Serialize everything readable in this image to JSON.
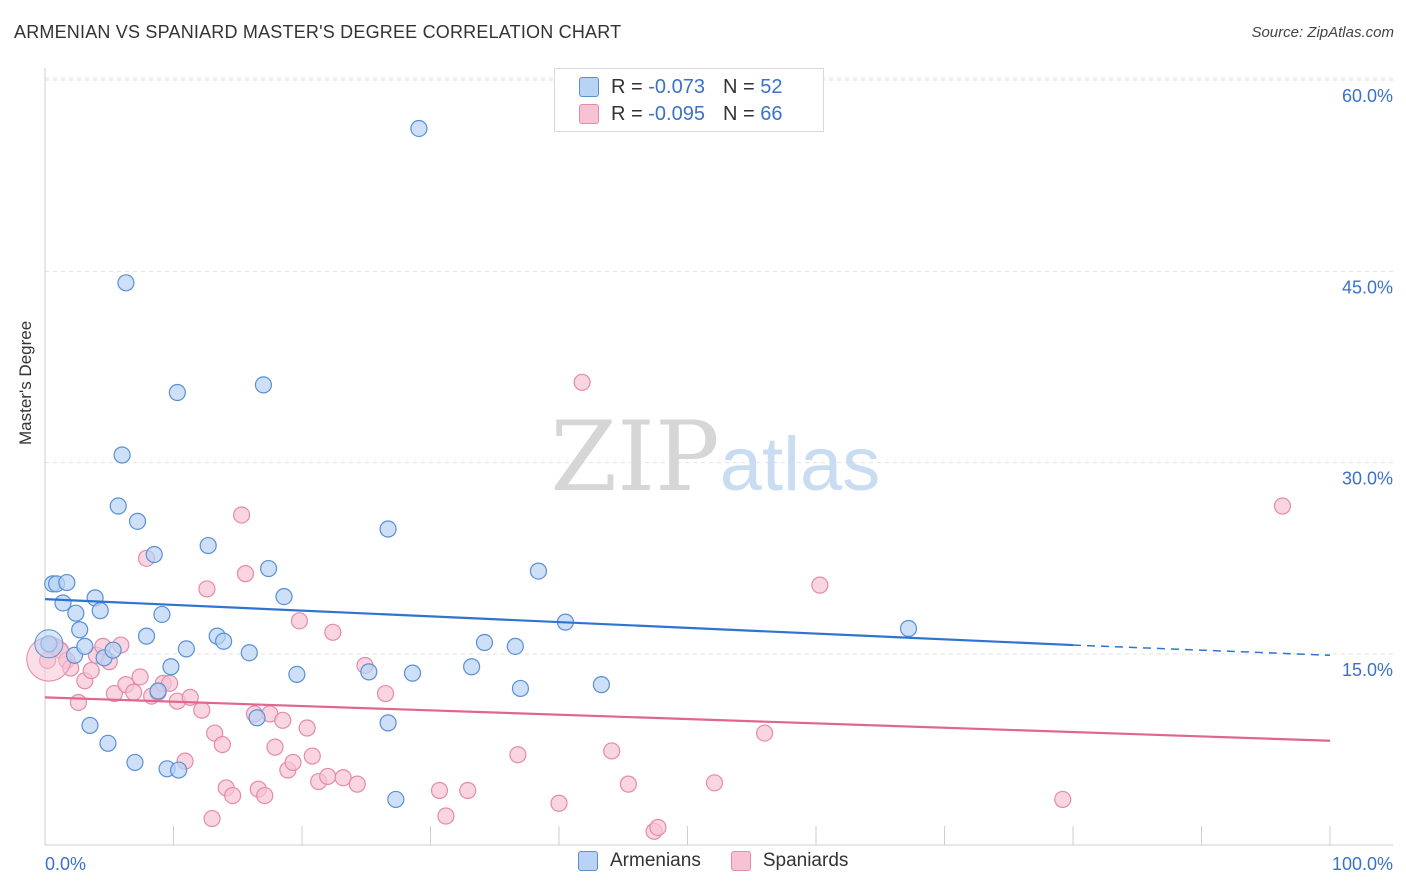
{
  "header": {
    "title": "ARMENIAN VS SPANIARD MASTER'S DEGREE CORRELATION CHART",
    "source": "Source: ZipAtlas.com"
  },
  "legend": {
    "rows": [
      {
        "r_label": "R = ",
        "r_value": "-0.073",
        "n_label": "N = ",
        "n_value": "52"
      },
      {
        "r_label": "R = ",
        "r_value": "-0.095",
        "n_label": "N = ",
        "n_value": "66"
      }
    ],
    "bottom": [
      "Armenians",
      "Spaniards"
    ]
  },
  "watermark": {
    "zip": "ZIP",
    "atlas": "atlas"
  },
  "colors": {
    "blue_fill": "#b8d3f4",
    "blue_stroke": "#5a8fd6",
    "blue_line": "#2f74d0",
    "pink_fill": "#f7c3d4",
    "pink_stroke": "#e68aa8",
    "pink_line": "#e0668e",
    "tick_label": "#3a72c9",
    "grid": "#e2e2e2"
  },
  "chart_data": {
    "type": "scatter",
    "title": "ARMENIAN VS SPANIARD MASTER'S DEGREE CORRELATION CHART",
    "xlabel": "",
    "ylabel": "Master's Degree",
    "xlim": [
      0,
      100
    ],
    "ylim": [
      0,
      63
    ],
    "x_tick_labels": [
      "0.0%",
      "100.0%"
    ],
    "y_ticks": [
      15,
      30,
      45,
      60
    ],
    "y_tick_labels": [
      "15.0%",
      "30.0%",
      "45.0%",
      "60.0%"
    ],
    "grid": true,
    "legend_position": "top-center",
    "series": [
      {
        "name": "Armenians",
        "r": -0.073,
        "n": 52,
        "trend": {
          "x0": 0,
          "y0": 19.3,
          "x1": 80,
          "y1": 15.7,
          "dashed_to_x": 100,
          "dashed_to_y": 14.9
        },
        "points": [
          [
            0.3,
            15.8
          ],
          [
            0.6,
            20.5
          ],
          [
            0.9,
            20.5
          ],
          [
            1.4,
            19.0
          ],
          [
            1.7,
            20.6
          ],
          [
            2.3,
            14.9
          ],
          [
            2.4,
            18.2
          ],
          [
            2.7,
            16.9
          ],
          [
            3.1,
            15.6
          ],
          [
            3.5,
            9.4
          ],
          [
            3.9,
            19.4
          ],
          [
            4.3,
            18.4
          ],
          [
            4.6,
            14.7
          ],
          [
            5.3,
            15.3
          ],
          [
            5.7,
            26.6
          ],
          [
            6.3,
            44.1
          ],
          [
            6.0,
            30.6
          ],
          [
            7.0,
            6.5
          ],
          [
            7.2,
            25.4
          ],
          [
            7.9,
            16.4
          ],
          [
            8.5,
            22.8
          ],
          [
            8.8,
            12.1
          ],
          [
            9.1,
            18.1
          ],
          [
            9.5,
            6.0
          ],
          [
            9.8,
            14.0
          ],
          [
            10.4,
            5.9
          ],
          [
            10.3,
            35.5
          ],
          [
            12.7,
            23.5
          ],
          [
            13.4,
            16.4
          ],
          [
            13.9,
            16.0
          ],
          [
            15.9,
            15.1
          ],
          [
            16.5,
            10.0
          ],
          [
            17.0,
            36.1
          ],
          [
            17.4,
            21.7
          ],
          [
            18.6,
            19.5
          ],
          [
            19.6,
            13.4
          ],
          [
            25.2,
            13.6
          ],
          [
            26.7,
            9.6
          ],
          [
            26.7,
            24.8
          ],
          [
            27.3,
            3.6
          ],
          [
            28.6,
            13.5
          ],
          [
            29.1,
            56.2
          ],
          [
            33.2,
            14.0
          ],
          [
            34.2,
            15.9
          ],
          [
            36.6,
            15.6
          ],
          [
            37.0,
            12.3
          ],
          [
            38.4,
            21.5
          ],
          [
            40.5,
            17.5
          ],
          [
            43.3,
            12.6
          ],
          [
            67.2,
            17.0
          ],
          [
            4.9,
            8.0
          ],
          [
            11.0,
            15.4
          ]
        ]
      },
      {
        "name": "Spaniards",
        "r": -0.095,
        "n": 66,
        "trend": {
          "x0": 0,
          "y0": 11.6,
          "x1": 100,
          "y1": 8.2
        },
        "points": [
          [
            0.2,
            14.5
          ],
          [
            0.5,
            15.7
          ],
          [
            1.2,
            15.3
          ],
          [
            1.7,
            14.5
          ],
          [
            2.0,
            13.9
          ],
          [
            2.6,
            11.2
          ],
          [
            3.1,
            12.9
          ],
          [
            3.6,
            13.7
          ],
          [
            4.0,
            14.9
          ],
          [
            4.5,
            15.6
          ],
          [
            5.0,
            14.4
          ],
          [
            5.4,
            11.9
          ],
          [
            5.9,
            15.7
          ],
          [
            6.3,
            12.6
          ],
          [
            6.9,
            12.0
          ],
          [
            7.4,
            13.2
          ],
          [
            7.9,
            22.5
          ],
          [
            8.3,
            11.7
          ],
          [
            8.8,
            12.0
          ],
          [
            9.2,
            12.7
          ],
          [
            9.7,
            12.7
          ],
          [
            10.3,
            11.3
          ],
          [
            10.9,
            6.6
          ],
          [
            11.3,
            11.6
          ],
          [
            12.2,
            10.6
          ],
          [
            12.6,
            20.1
          ],
          [
            13.0,
            2.1
          ],
          [
            13.2,
            8.8
          ],
          [
            13.8,
            7.9
          ],
          [
            14.1,
            4.5
          ],
          [
            14.6,
            3.9
          ],
          [
            15.3,
            25.9
          ],
          [
            15.6,
            21.3
          ],
          [
            16.3,
            10.3
          ],
          [
            16.6,
            4.4
          ],
          [
            17.1,
            3.9
          ],
          [
            17.5,
            10.3
          ],
          [
            17.9,
            7.7
          ],
          [
            18.5,
            9.8
          ],
          [
            18.9,
            5.9
          ],
          [
            19.3,
            6.5
          ],
          [
            19.8,
            17.6
          ],
          [
            20.4,
            9.2
          ],
          [
            20.8,
            7.0
          ],
          [
            21.3,
            5.0
          ],
          [
            22.0,
            5.4
          ],
          [
            22.4,
            16.7
          ],
          [
            23.2,
            5.3
          ],
          [
            24.3,
            4.8
          ],
          [
            24.9,
            14.1
          ],
          [
            26.5,
            11.9
          ],
          [
            30.7,
            4.3
          ],
          [
            31.2,
            2.3
          ],
          [
            32.9,
            4.3
          ],
          [
            36.8,
            7.1
          ],
          [
            40.0,
            3.3
          ],
          [
            44.1,
            7.4
          ],
          [
            45.4,
            4.8
          ],
          [
            47.4,
            1.1
          ],
          [
            47.7,
            1.4
          ],
          [
            52.1,
            4.9
          ],
          [
            56.0,
            8.8
          ],
          [
            60.3,
            20.4
          ],
          [
            79.2,
            3.6
          ],
          [
            96.3,
            26.6
          ],
          [
            41.8,
            36.3
          ]
        ]
      }
    ]
  }
}
